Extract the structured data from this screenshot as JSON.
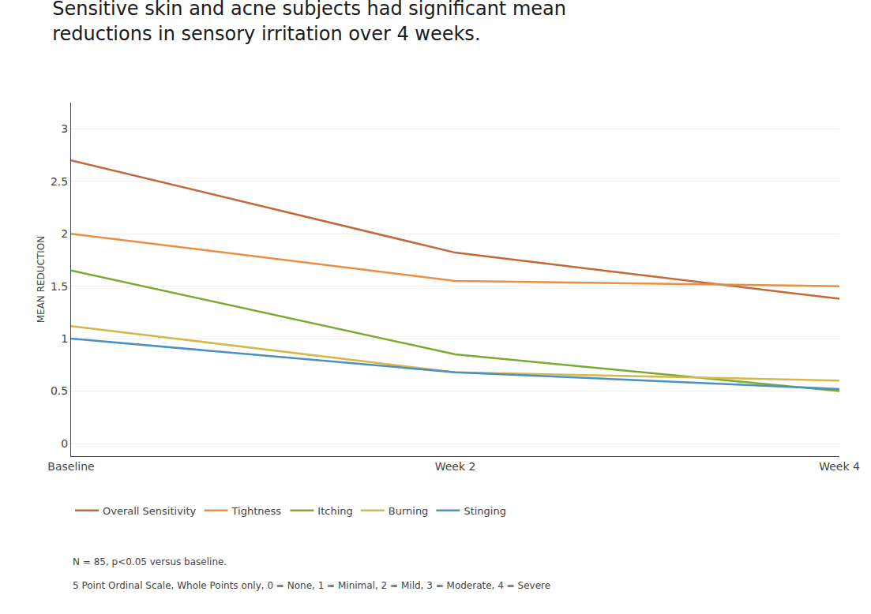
{
  "chart_data": {
    "type": "line",
    "title": "Sensitive skin and acne subjects had significant mean\nreductions in sensory irritation over 4 weeks.",
    "y_label": "MEAN REDUCTION",
    "categories": [
      "Baseline",
      "Week 2",
      "Week 4"
    ],
    "series": [
      {
        "name": "Overall Sensitivity",
        "color": "#C1693A",
        "values": [
          2.7,
          1.82,
          1.38
        ]
      },
      {
        "name": "Tightness",
        "color": "#E89040",
        "values": [
          2.0,
          1.55,
          1.5
        ]
      },
      {
        "name": "Itching",
        "color": "#7AAA30",
        "values": [
          1.65,
          0.85,
          0.5
        ]
      },
      {
        "name": "Burning",
        "color": "#D4B84A",
        "values": [
          1.12,
          0.68,
          0.6
        ]
      },
      {
        "name": "Stinging",
        "color": "#4A90C4",
        "values": [
          1.0,
          0.68,
          0.52
        ]
      }
    ],
    "ylim": [
      -0.12,
      3.25
    ],
    "yticks": [
      0,
      0.5,
      1,
      1.5,
      2,
      2.5,
      3
    ],
    "grid": true,
    "legend": "bottom",
    "annotations": [
      "N = 85, p<0.05 versus baseline.",
      "5 Point Ordinal Scale, Whole Points only, 0 = None, 1 = Minimal, 2 = Mild, 3 = Moderate, 4 = Severe"
    ]
  }
}
